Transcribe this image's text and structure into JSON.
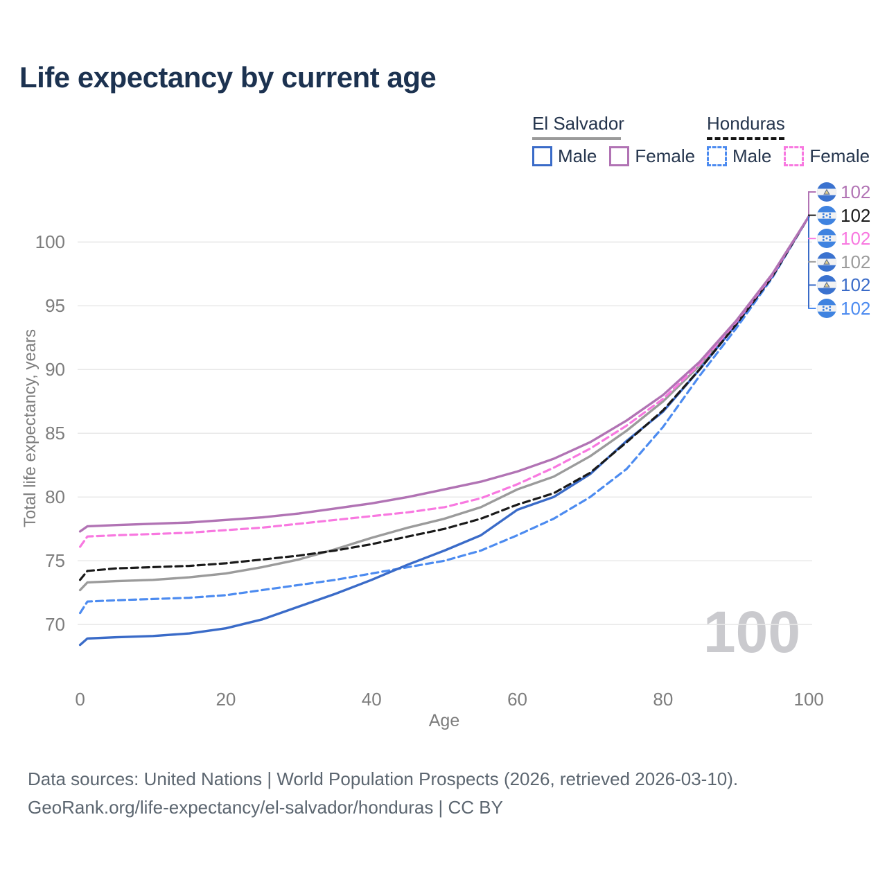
{
  "title": "Life expectancy by current age",
  "legend": {
    "groups": [
      {
        "name": "El Salvador",
        "underline_style": "solid",
        "underline_color": "#9a9a9a",
        "items": [
          {
            "label": "Male",
            "color": "#3a6bc8",
            "dashed": false
          },
          {
            "label": "Female",
            "color": "#b173b4",
            "dashed": false
          }
        ]
      },
      {
        "name": "Honduras",
        "underline_style": "dashed",
        "underline_color": "#141414",
        "items": [
          {
            "label": "Male",
            "color": "#4c8bf0",
            "dashed": true
          },
          {
            "label": "Female",
            "color": "#f878e0",
            "dashed": true
          }
        ]
      }
    ]
  },
  "chart_data": {
    "type": "line",
    "title": "Life expectancy by current age",
    "xlabel": "Age",
    "ylabel": "Total life expectancy, years",
    "xlim": [
      0,
      100
    ],
    "ylim": [
      66.5,
      103
    ],
    "x_ticks": [
      0,
      20,
      40,
      60,
      80,
      100
    ],
    "y_ticks": [
      70,
      75,
      80,
      85,
      90,
      95,
      100
    ],
    "grid": "horizontal-only",
    "legend_position": "top-right",
    "ages": [
      0,
      1,
      5,
      10,
      15,
      20,
      25,
      30,
      35,
      40,
      45,
      50,
      55,
      60,
      65,
      70,
      75,
      80,
      85,
      90,
      95,
      100
    ],
    "series": [
      {
        "name": "El Salvador Female",
        "country": "El Salvador",
        "sex": "Female",
        "color": "#b173b4",
        "dashed": false,
        "values": [
          77.3,
          77.7,
          77.8,
          77.9,
          78.0,
          78.2,
          78.4,
          78.7,
          79.1,
          79.5,
          80.0,
          80.6,
          81.2,
          82.0,
          83.0,
          84.3,
          86.0,
          88.0,
          90.6,
          93.8,
          97.5,
          102
        ]
      },
      {
        "name": "Honduras Female",
        "country": "Honduras",
        "sex": "Female",
        "color": "#f878e0",
        "dashed": true,
        "values": [
          76.1,
          76.9,
          77.0,
          77.1,
          77.2,
          77.4,
          77.6,
          77.9,
          78.2,
          78.5,
          78.8,
          79.2,
          79.9,
          81.0,
          82.3,
          83.8,
          85.6,
          87.7,
          90.4,
          93.7,
          97.4,
          102
        ]
      },
      {
        "name": "Honduras Total",
        "country": "Honduras",
        "sex": "Total",
        "color": "#1a1a1a",
        "dashed": true,
        "values": [
          73.5,
          74.2,
          74.4,
          74.5,
          74.6,
          74.8,
          75.1,
          75.4,
          75.8,
          76.3,
          76.9,
          77.5,
          78.3,
          79.4,
          80.3,
          81.9,
          84.3,
          86.8,
          90.0,
          93.5,
          97.3,
          102
        ]
      },
      {
        "name": "El Salvador Total",
        "country": "El Salvador",
        "sex": "Total",
        "color": "#9b9b9b",
        "dashed": false,
        "values": [
          72.7,
          73.3,
          73.4,
          73.5,
          73.7,
          74.0,
          74.5,
          75.1,
          75.9,
          76.8,
          77.6,
          78.3,
          79.2,
          80.6,
          81.6,
          83.2,
          85.2,
          87.5,
          90.3,
          93.6,
          97.4,
          102
        ]
      },
      {
        "name": "El Salvador Male",
        "country": "El Salvador",
        "sex": "Male",
        "color": "#3a6bc8",
        "dashed": false,
        "values": [
          68.4,
          68.9,
          69.0,
          69.1,
          69.3,
          69.7,
          70.4,
          71.4,
          72.4,
          73.5,
          74.7,
          75.8,
          77.0,
          79.0,
          80.0,
          81.8,
          84.4,
          86.7,
          90.0,
          93.5,
          97.3,
          102
        ]
      },
      {
        "name": "Honduras Male",
        "country": "Honduras",
        "sex": "Male",
        "color": "#4c8bf0",
        "dashed": true,
        "values": [
          70.9,
          71.8,
          71.9,
          72.0,
          72.1,
          72.3,
          72.7,
          73.1,
          73.5,
          74.0,
          74.5,
          75.0,
          75.8,
          77.0,
          78.3,
          80.0,
          82.2,
          85.5,
          89.5,
          93.2,
          97.2,
          102
        ]
      }
    ]
  },
  "end_labels": [
    {
      "value": "102",
      "flag": "el-salvador",
      "series": "El Salvador Female",
      "color": "#b173b4"
    },
    {
      "value": "102",
      "flag": "honduras",
      "series": "Honduras Total",
      "color": "#1a1a1a"
    },
    {
      "value": "102",
      "flag": "honduras",
      "series": "Honduras Female",
      "color": "#f878e0"
    },
    {
      "value": "102",
      "flag": "el-salvador",
      "series": "El Salvador Total",
      "color": "#9b9b9b"
    },
    {
      "value": "102",
      "flag": "el-salvador",
      "series": "El Salvador Male",
      "color": "#3a6bc8"
    },
    {
      "value": "102",
      "flag": "honduras",
      "series": "Honduras Male",
      "color": "#4c8bf0"
    }
  ],
  "watermark": "100",
  "axes": {
    "x_title": "Age",
    "y_title": "Total life expectancy, years"
  },
  "footer": {
    "line1": "Data sources: United Nations | World Population Prospects (2026, retrieved 2026-03-10).",
    "line2": "GeoRank.org/life-expectancy/el-salvador/honduras | CC BY"
  },
  "colors": {
    "title": "#1c3250",
    "axis_text": "#7d7d7d",
    "grid": "#e8e8e8",
    "watermark": "#cacace",
    "footer_text": "#5c6670",
    "flag_blue_el_salvador": "#3a72cf",
    "flag_blue_honduras": "#3f83e0"
  }
}
